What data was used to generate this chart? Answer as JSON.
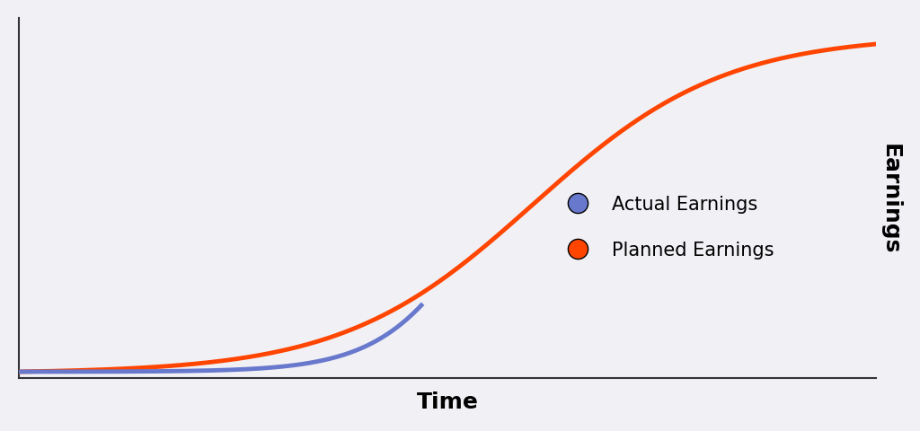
{
  "background_color": "#f0f0f5",
  "plot_bg_color": "#f0f0f5",
  "actual_color": "#6878cc",
  "planned_color": "#ff4500",
  "xlabel": "Time",
  "ylabel": "Earnings",
  "xlabel_fontsize": 18,
  "ylabel_fontsize": 18,
  "legend_actual": "Actual Earnings",
  "legend_planned": "Planned Earnings",
  "legend_fontsize": 15,
  "line_width": 3.5,
  "actual_dot_color": "#6878cc",
  "planned_dot_color": "#ff4500"
}
